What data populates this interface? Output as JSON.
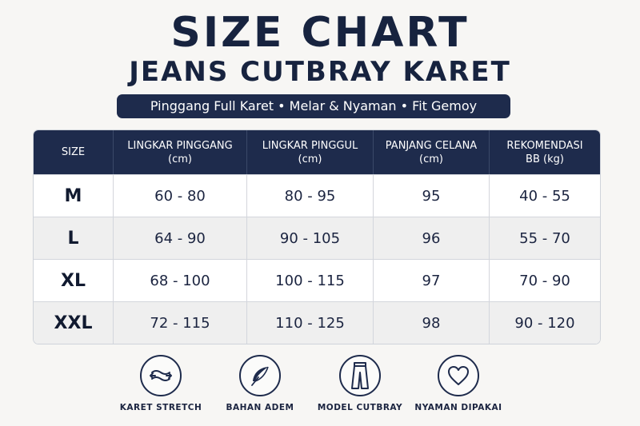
{
  "header": {
    "title": "SIZE CHART",
    "subtitle": "JEANS CUTBRAY KARET",
    "tagline": "Pinggang Full Karet • Melar & Nyaman • Fit Gemoy"
  },
  "table": {
    "headers": [
      {
        "line1": "SIZE",
        "line2": ""
      },
      {
        "line1": "LINGKAR PINGGANG",
        "line2": "(cm)"
      },
      {
        "line1": "LINGKAR PINGGUL",
        "line2": "(cm)"
      },
      {
        "line1": "PANJANG CELANA",
        "line2": "(cm)"
      },
      {
        "line1": "REKOMENDASI",
        "line2": "BB (kg)"
      }
    ],
    "rows": [
      [
        "M",
        "60 - 80",
        "80 - 95",
        "95",
        "40 - 55"
      ],
      [
        "L",
        "64 - 90",
        "90 - 105",
        "96",
        "55 - 70"
      ],
      [
        "XL",
        "68 - 100",
        "100 - 115",
        "97",
        "70 - 90"
      ],
      [
        "XXL",
        "72 - 115",
        "110 - 125",
        "98",
        "90 - 120"
      ]
    ]
  },
  "features": [
    {
      "label": "KARET STRETCH",
      "icon": "stretch-arrows-icon"
    },
    {
      "label": "BAHAN ADEM",
      "icon": "feather-icon"
    },
    {
      "label": "MODEL CUTBRAY",
      "icon": "jeans-icon"
    },
    {
      "label": "NYAMAN DIPAKAI",
      "icon": "heart-icon"
    }
  ],
  "colors": {
    "navy": "#1e2b4c",
    "text": "#17233f",
    "row_alt": "#efefef",
    "background": "#f7f6f4"
  }
}
